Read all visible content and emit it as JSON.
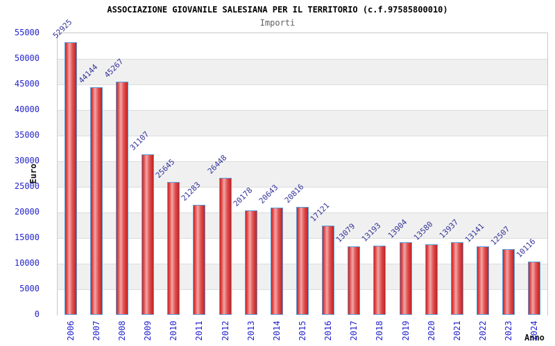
{
  "header": {
    "title": "ASSOCIAZIONE GIOVANILE SALESIANA PER IL TERRITORIO (c.f.97585800010)",
    "subtitle": "Importi"
  },
  "chart_data": {
    "type": "bar",
    "title": "ASSOCIAZIONE GIOVANILE SALESIANA PER IL TERRITORIO (c.f.97585800010)",
    "subtitle": "Importi",
    "xlabel": "Anno",
    "ylabel": "Euro",
    "categories": [
      "2006",
      "2007",
      "2008",
      "2009",
      "2010",
      "2011",
      "2012",
      "2013",
      "2014",
      "2015",
      "2016",
      "2017",
      "2018",
      "2019",
      "2020",
      "2021",
      "2022",
      "2023",
      "2024"
    ],
    "values": [
      52925,
      44144,
      45267,
      31107,
      25645,
      21283,
      26448,
      20178,
      20643,
      20816,
      17121,
      13079,
      13193,
      13904,
      13580,
      13937,
      13141,
      12507,
      10116
    ],
    "ylim": [
      0,
      55000
    ],
    "ytick_step": 5000,
    "grid": true,
    "legend": false,
    "colors": {
      "tick_label": "#2424cc",
      "value_label": "#333399",
      "bar_border": "#55a0dc",
      "bar_gradient": [
        "#cc2222",
        "#e25050",
        "#f2a6a6",
        "#e05050",
        "#c42020"
      ],
      "band_alt": "#f0f0f0",
      "band_main": "#ffffff",
      "gridline": "#dcdcdc",
      "frame_border": "#c8c8c8",
      "title_color": "#000000",
      "subtitle_color": "#606060",
      "axis_title_color": "#111111"
    }
  }
}
